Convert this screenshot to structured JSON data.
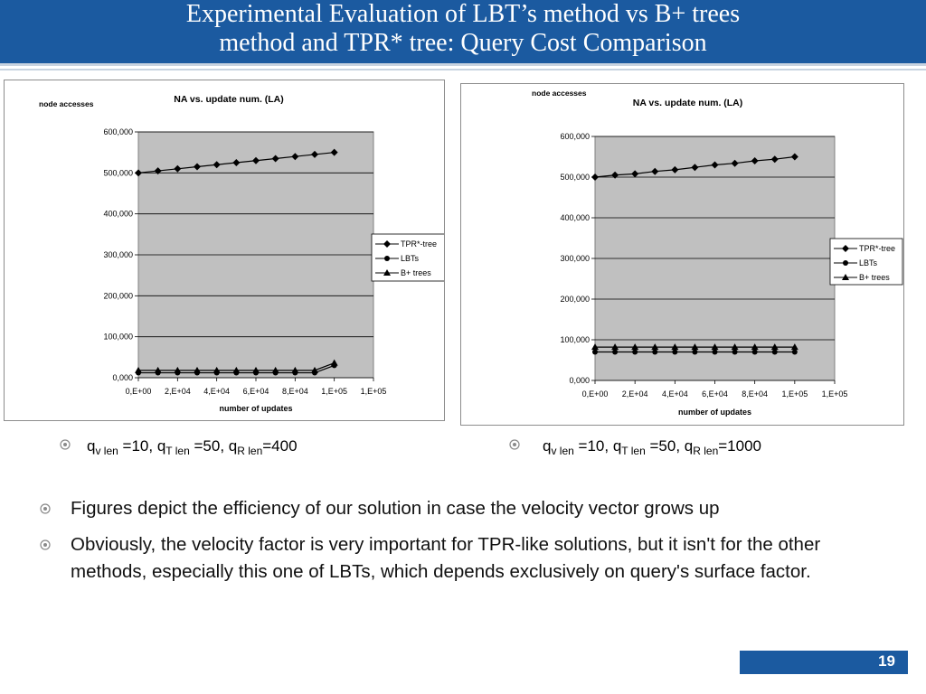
{
  "slide": {
    "title_line1": "Experimental Evaluation of LBT’s method vs B+ trees",
    "title_line2": "method and TPR* tree: Query Cost Comparison",
    "page_number": "19",
    "colors": {
      "title_bar": "#1b5aa0",
      "plot_bg": "#c0c0c0"
    }
  },
  "captions": [
    {
      "q": "q",
      "v_sub": "v len",
      "mid1": " =10, q",
      "t_sub": "T len",
      "mid2": " =50, q",
      "r_sub": "R len",
      "end": "=400"
    },
    {
      "q": "q",
      "v_sub": "v len",
      "mid1": " =10, q",
      "t_sub": "T len",
      "mid2": " =50, q",
      "r_sub": "R len",
      "end": "=1000"
    }
  ],
  "bullets": [
    "Figures depict the efficiency of our solution in case the velocity vector grows up",
    "Obviously, the velocity factor is very important for TPR-like solutions, but it isn't for the other methods, especially this one of LBTs, which depends exclusively on query's surface factor."
  ],
  "chart_data": [
    {
      "type": "line",
      "title": "NA vs. update num. (LA)",
      "ylabel": "node accesses",
      "xlabel": "number of updates",
      "x": [
        0,
        10000,
        20000,
        30000,
        40000,
        50000,
        60000,
        70000,
        80000,
        90000,
        100000
      ],
      "x_tick_labels": [
        "0,E+00",
        "2,E+04",
        "4,E+04",
        "6,E+04",
        "8,E+04",
        "1,E+05",
        "1,E+05"
      ],
      "y_tick_labels": [
        "0,000",
        "100,000",
        "200,000",
        "300,000",
        "400,000",
        "500,000",
        "600,000"
      ],
      "ylim": [
        0,
        600000
      ],
      "xlim": [
        0,
        120000
      ],
      "grid": true,
      "legend": "right",
      "series": [
        {
          "name": "TPR*-tree",
          "marker": "diamond",
          "values": [
            500000,
            505000,
            510000,
            515000,
            520000,
            525000,
            530000,
            535000,
            540000,
            545000,
            550000
          ]
        },
        {
          "name": "LBTs",
          "marker": "circle",
          "values": [
            12000,
            12000,
            12000,
            12000,
            12000,
            12000,
            12000,
            12000,
            12000,
            12000,
            30000
          ]
        },
        {
          "name": "B+ trees",
          "marker": "triangle",
          "values": [
            18000,
            18000,
            18000,
            18000,
            18000,
            18000,
            18000,
            18000,
            18000,
            18000,
            36000
          ]
        }
      ]
    },
    {
      "type": "line",
      "title": "NA vs. update num. (LA)",
      "ylabel": "node accesses",
      "xlabel": "number of updates",
      "x": [
        0,
        10000,
        20000,
        30000,
        40000,
        50000,
        60000,
        70000,
        80000,
        90000,
        100000
      ],
      "x_tick_labels": [
        "0,E+00",
        "2,E+04",
        "4,E+04",
        "6,E+04",
        "8,E+04",
        "1,E+05",
        "1,E+05"
      ],
      "y_tick_labels": [
        "0,000",
        "100,000",
        "200,000",
        "300,000",
        "400,000",
        "500,000",
        "600,000"
      ],
      "ylim": [
        0,
        600000
      ],
      "xlim": [
        0,
        120000
      ],
      "grid": true,
      "legend": "right",
      "series": [
        {
          "name": "TPR*-tree",
          "marker": "diamond",
          "values": [
            500000,
            505000,
            508000,
            514000,
            518000,
            524000,
            530000,
            534000,
            540000,
            544000,
            550000
          ]
        },
        {
          "name": "LBTs",
          "marker": "circle",
          "values": [
            70000,
            70000,
            70000,
            70000,
            70000,
            70000,
            70000,
            70000,
            70000,
            70000,
            70000
          ]
        },
        {
          "name": "B+ trees",
          "marker": "triangle",
          "values": [
            82000,
            82000,
            82000,
            82000,
            82000,
            82000,
            82000,
            82000,
            82000,
            82000,
            82000
          ]
        }
      ]
    }
  ]
}
